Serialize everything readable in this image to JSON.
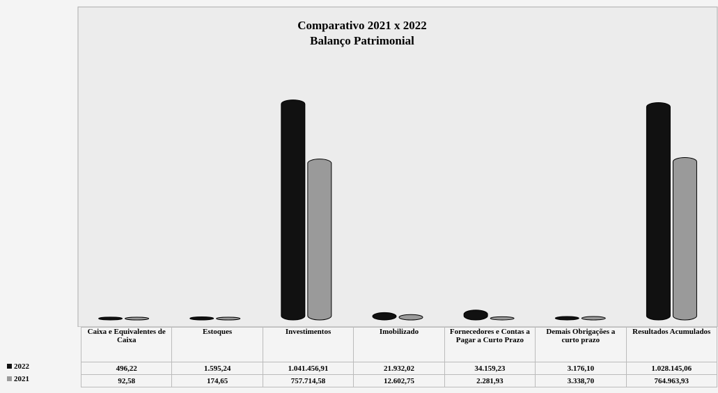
{
  "chart_data": {
    "type": "bar",
    "title": "Comparativo 2021 x 2022",
    "subtitle": "Balanço Patrimonial",
    "categories": [
      "Caixa e Equivalentes de Caixa",
      "Estoques",
      "Investimentos",
      "Imobilizado",
      "Fornecedores e Contas a Pagar a Curto Prazo",
      "Demais Obrigações a curto prazo",
      "Resultados Acumulados"
    ],
    "series": [
      {
        "name": "2022",
        "color": "#111111",
        "values": [
          496.22,
          1595.24,
          1041456.91,
          21932.02,
          34159.23,
          3176.1,
          1028145.06
        ],
        "value_labels": [
          "496,22",
          "1.595,24",
          "1.041.456,91",
          "21.932,02",
          "34.159,23",
          "3.176,10",
          "1.028.145,06"
        ]
      },
      {
        "name": "2021",
        "color": "#9a9a9a",
        "values": [
          92.58,
          174.65,
          757714.58,
          12602.75,
          2281.93,
          3338.7,
          764963.93
        ],
        "value_labels": [
          "92,58",
          "174,65",
          "757.714,58",
          "12.602,75",
          "2.281,93",
          "3.338,70",
          "764.963,93"
        ]
      }
    ],
    "ylim": [
      0,
      1100000
    ]
  }
}
